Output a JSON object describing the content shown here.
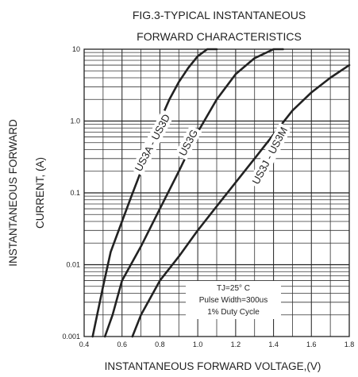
{
  "chart_data": {
    "type": "line",
    "title_lines": [
      "FIG.3-TYPICAL INSTANTANEOUS",
      "FORWARD CHARACTERISTICS"
    ],
    "xlabel": "INSTANTANEOUS FORWARD VOLTAGE,(V)",
    "ylabel_lines": [
      "INSTANTANEOUS FORWARD",
      "CURRENT, (A)"
    ],
    "xlim": [
      0.4,
      1.8
    ],
    "ylim": [
      0.001,
      10
    ],
    "yscale": "log",
    "grid": true,
    "x_ticks": [
      {
        "value": 0.4,
        "label": "0.4"
      },
      {
        "value": 0.6,
        "label": "0.6"
      },
      {
        "value": 0.8,
        "label": "0.8"
      },
      {
        "value": 1.0,
        "label": "1.0"
      },
      {
        "value": 1.2,
        "label": "1.2"
      },
      {
        "value": 1.4,
        "label": "1.4"
      },
      {
        "value": 1.6,
        "label": "1.6"
      },
      {
        "value": 1.8,
        "label": "1.8"
      }
    ],
    "y_ticks": [
      {
        "value": 0.001,
        "label": "0.001"
      },
      {
        "value": 0.01,
        "label": "0.01"
      },
      {
        "value": 0.1,
        "label": "0.1"
      },
      {
        "value": 1,
        "label": "1.0"
      },
      {
        "value": 10,
        "label": "10"
      }
    ],
    "series": [
      {
        "name": "US3A - US3D",
        "label_at": [
          0.76,
          0.5
        ],
        "x": [
          0.445,
          0.5,
          0.54,
          0.6,
          0.65,
          0.7,
          0.76,
          0.8,
          0.85,
          0.9,
          0.95,
          1.0,
          1.05,
          1.1
        ],
        "y": [
          0.001,
          0.005,
          0.015,
          0.04,
          0.09,
          0.2,
          0.5,
          1.0,
          2.0,
          3.5,
          5.5,
          8.0,
          10.0,
          10.0
        ]
      },
      {
        "name": "US3G",
        "label_at": [
          0.95,
          0.5
        ],
        "x": [
          0.51,
          0.55,
          0.6,
          0.7,
          0.8,
          0.9,
          1.0,
          1.1,
          1.2,
          1.3,
          1.4,
          1.45
        ],
        "y": [
          0.001,
          0.002,
          0.006,
          0.018,
          0.06,
          0.2,
          0.7,
          2.0,
          4.5,
          7.5,
          10.0,
          10.0
        ]
      },
      {
        "name": "US3J - US3M",
        "label_at": [
          1.38,
          0.33
        ],
        "x": [
          0.655,
          0.7,
          0.8,
          0.9,
          1.0,
          1.1,
          1.2,
          1.3,
          1.4,
          1.5,
          1.6,
          1.7,
          1.8
        ],
        "y": [
          0.001,
          0.002,
          0.006,
          0.013,
          0.03,
          0.065,
          0.14,
          0.3,
          0.65,
          1.4,
          2.5,
          4.0,
          6.0
        ]
      }
    ],
    "annotation_lines": [
      "TJ=25° C",
      "Pulse Width=300us",
      "1% Duty Cycle"
    ]
  }
}
